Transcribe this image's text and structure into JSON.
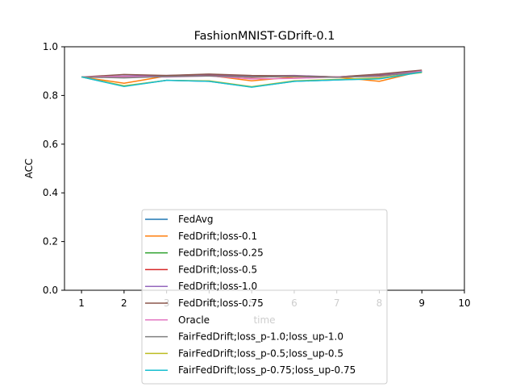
{
  "chart_data": {
    "type": "line",
    "title": "FashionMNIST-GDrift-0.1",
    "xlabel": "time",
    "ylabel": "ACC",
    "xlim": [
      0.6,
      10
    ],
    "ylim": [
      0,
      1.0
    ],
    "xticks": [
      "1",
      "2",
      "3",
      "4",
      "5",
      "6",
      "7",
      "8",
      "9",
      "10"
    ],
    "yticks": [
      "0.0",
      "0.2",
      "0.4",
      "0.6",
      "0.8",
      "1.0"
    ],
    "grid": false,
    "legend_position": "lower-center",
    "x": [
      1,
      2,
      3,
      4,
      5,
      6,
      7,
      8,
      9
    ],
    "series": [
      {
        "name": "FedAvg",
        "color": "#1f77b4",
        "values": [
          0.876,
          0.838,
          0.862,
          0.858,
          0.835,
          0.858,
          0.864,
          0.87,
          0.896
        ]
      },
      {
        "name": "FedDrift;loss-0.1",
        "color": "#ff7f0e",
        "values": [
          0.876,
          0.85,
          0.88,
          0.882,
          0.86,
          0.876,
          0.876,
          0.858,
          0.9
        ]
      },
      {
        "name": "FedDrift;loss-0.25",
        "color": "#2ca02c",
        "values": [
          0.876,
          0.875,
          0.88,
          0.884,
          0.878,
          0.88,
          0.876,
          0.884,
          0.898
        ]
      },
      {
        "name": "FedDrift;loss-0.5",
        "color": "#d62728",
        "values": [
          0.876,
          0.878,
          0.88,
          0.884,
          0.874,
          0.88,
          0.876,
          0.884,
          0.9
        ]
      },
      {
        "name": "FedDrift;loss-1.0",
        "color": "#9467bd",
        "values": [
          0.876,
          0.88,
          0.882,
          0.886,
          0.88,
          0.882,
          0.876,
          0.886,
          0.9
        ]
      },
      {
        "name": "FedDrift;loss-0.75",
        "color": "#8c564b",
        "values": [
          0.876,
          0.886,
          0.882,
          0.888,
          0.882,
          0.88,
          0.876,
          0.888,
          0.904
        ]
      },
      {
        "name": "Oracle",
        "color": "#e377c2",
        "values": [
          0.876,
          0.878,
          0.876,
          0.88,
          0.868,
          0.87,
          0.876,
          0.878,
          0.9
        ]
      },
      {
        "name": "FairFedDrift;loss_p-1.0;loss_up-1.0",
        "color": "#7f7f7f",
        "values": [
          0.876,
          0.872,
          0.878,
          0.88,
          0.876,
          0.878,
          0.874,
          0.88,
          0.896
        ]
      },
      {
        "name": "FairFedDrift;loss_p-0.5;loss_up-0.5",
        "color": "#bcbd22",
        "values": [
          0.876,
          0.84,
          0.862,
          0.86,
          0.836,
          0.86,
          0.866,
          0.872,
          0.894
        ]
      },
      {
        "name": "FairFedDrift;loss_p-0.75;loss_up-0.75",
        "color": "#17becf",
        "values": [
          0.876,
          0.837,
          0.862,
          0.858,
          0.834,
          0.858,
          0.864,
          0.868,
          0.896
        ]
      }
    ]
  }
}
